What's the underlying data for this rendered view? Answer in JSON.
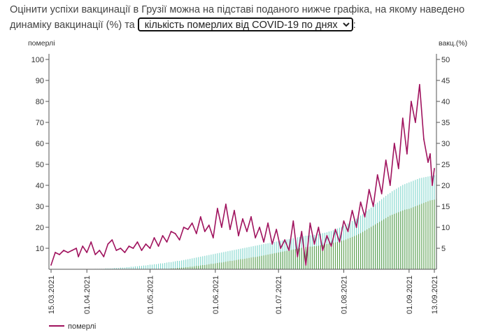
{
  "intro": {
    "text_before": "Оцінити успіхи вакцинації в Грузії можна на підставі поданого нижче графіка, на якому наведено динаміку вакцинації (%) та",
    "text_after": ":"
  },
  "selector": {
    "selected": "кількість померлих від COVID-19 по днях"
  },
  "colors": {
    "deaths_line": "#a0135e",
    "vacc_light": "#7fd6cc",
    "vacc_dark": "#5e9e4c",
    "axis": "#555555",
    "grid": "#eeeeee"
  },
  "chart_data": {
    "type": "line",
    "left_axis": {
      "label": "померлі",
      "ticks": [
        10,
        20,
        30,
        40,
        50,
        60,
        70,
        80,
        90,
        100
      ],
      "range": [
        0,
        100
      ]
    },
    "right_axis": {
      "label": "вакц.(%)",
      "ticks": [
        5,
        10,
        15,
        20,
        25,
        30,
        35,
        40,
        45,
        50
      ],
      "range": [
        0,
        50
      ]
    },
    "x_range": [
      "2021-03-15",
      "2021-09-13"
    ],
    "x_tick_labels": [
      "15.03.2021",
      "01.04.2021",
      "01.05.2021",
      "01.06.2021",
      "01.07.2021",
      "01.08.2021",
      "01.09.2021",
      "13.09.2021"
    ],
    "x_tick_dates": [
      "2021-03-15",
      "2021-04-01",
      "2021-05-01",
      "2021-06-01",
      "2021-07-01",
      "2021-08-01",
      "2021-09-01",
      "2021-09-13"
    ],
    "deaths": {
      "name": "померлі",
      "points": [
        [
          "2021-03-15",
          2
        ],
        [
          "2021-03-17",
          8
        ],
        [
          "2021-03-19",
          7
        ],
        [
          "2021-03-21",
          9
        ],
        [
          "2021-03-23",
          8
        ],
        [
          "2021-03-25",
          9
        ],
        [
          "2021-03-27",
          10
        ],
        [
          "2021-03-28",
          6
        ],
        [
          "2021-03-30",
          11
        ],
        [
          "2021-04-01",
          8
        ],
        [
          "2021-04-03",
          13
        ],
        [
          "2021-04-05",
          7
        ],
        [
          "2021-04-07",
          9
        ],
        [
          "2021-04-09",
          6
        ],
        [
          "2021-04-11",
          12
        ],
        [
          "2021-04-13",
          14
        ],
        [
          "2021-04-15",
          9
        ],
        [
          "2021-04-17",
          10
        ],
        [
          "2021-04-19",
          8
        ],
        [
          "2021-04-21",
          11
        ],
        [
          "2021-04-23",
          10
        ],
        [
          "2021-04-25",
          13
        ],
        [
          "2021-04-27",
          9
        ],
        [
          "2021-04-29",
          12
        ],
        [
          "2021-05-01",
          10
        ],
        [
          "2021-05-03",
          15
        ],
        [
          "2021-05-05",
          11
        ],
        [
          "2021-05-07",
          16
        ],
        [
          "2021-05-09",
          13
        ],
        [
          "2021-05-11",
          18
        ],
        [
          "2021-05-13",
          17
        ],
        [
          "2021-05-15",
          14
        ],
        [
          "2021-05-17",
          20
        ],
        [
          "2021-05-19",
          19
        ],
        [
          "2021-05-21",
          22
        ],
        [
          "2021-05-23",
          17
        ],
        [
          "2021-05-25",
          25
        ],
        [
          "2021-05-27",
          18
        ],
        [
          "2021-05-29",
          21
        ],
        [
          "2021-05-31",
          15
        ],
        [
          "2021-06-02",
          29
        ],
        [
          "2021-06-04",
          20
        ],
        [
          "2021-06-06",
          31
        ],
        [
          "2021-06-08",
          19
        ],
        [
          "2021-06-10",
          28
        ],
        [
          "2021-06-12",
          16
        ],
        [
          "2021-06-14",
          24
        ],
        [
          "2021-06-16",
          18
        ],
        [
          "2021-06-18",
          25
        ],
        [
          "2021-06-20",
          15
        ],
        [
          "2021-06-22",
          20
        ],
        [
          "2021-06-24",
          13
        ],
        [
          "2021-06-26",
          22
        ],
        [
          "2021-06-28",
          12
        ],
        [
          "2021-06-30",
          19
        ],
        [
          "2021-07-02",
          10
        ],
        [
          "2021-07-04",
          14
        ],
        [
          "2021-07-06",
          9
        ],
        [
          "2021-07-08",
          23
        ],
        [
          "2021-07-10",
          6
        ],
        [
          "2021-07-12",
          18
        ],
        [
          "2021-07-14",
          2
        ],
        [
          "2021-07-16",
          22
        ],
        [
          "2021-07-18",
          12
        ],
        [
          "2021-07-20",
          20
        ],
        [
          "2021-07-22",
          9
        ],
        [
          "2021-07-24",
          16
        ],
        [
          "2021-07-26",
          11
        ],
        [
          "2021-07-28",
          19
        ],
        [
          "2021-07-30",
          13
        ],
        [
          "2021-08-01",
          23
        ],
        [
          "2021-08-03",
          18
        ],
        [
          "2021-08-05",
          28
        ],
        [
          "2021-08-07",
          20
        ],
        [
          "2021-08-09",
          32
        ],
        [
          "2021-08-11",
          25
        ],
        [
          "2021-08-13",
          38
        ],
        [
          "2021-08-15",
          30
        ],
        [
          "2021-08-17",
          45
        ],
        [
          "2021-08-19",
          36
        ],
        [
          "2021-08-21",
          52
        ],
        [
          "2021-08-23",
          40
        ],
        [
          "2021-08-25",
          60
        ],
        [
          "2021-08-27",
          48
        ],
        [
          "2021-08-29",
          72
        ],
        [
          "2021-08-31",
          55
        ],
        [
          "2021-09-02",
          80
        ],
        [
          "2021-09-04",
          70
        ],
        [
          "2021-09-06",
          88
        ],
        [
          "2021-09-08",
          62
        ],
        [
          "2021-09-10",
          51
        ],
        [
          "2021-09-11",
          55
        ],
        [
          "2021-09-12",
          40
        ],
        [
          "2021-09-13",
          48
        ]
      ]
    },
    "vaccination": {
      "start_date": "2021-03-15",
      "dose1": [
        0.0,
        0.0,
        0.0,
        0.0,
        0.0,
        0.0,
        0.0,
        0.0,
        0.0,
        0.0,
        0.0,
        0.0,
        0.0,
        0.0,
        0.0,
        0.0,
        0.0,
        0.0,
        0.0,
        0.0,
        0.0,
        0.1,
        0.1,
        0.1,
        0.1,
        0.1,
        0.2,
        0.2,
        0.2,
        0.2,
        0.3,
        0.3,
        0.3,
        0.4,
        0.4,
        0.4,
        0.5,
        0.5,
        0.6,
        0.6,
        0.7,
        0.7,
        0.8,
        0.8,
        0.9,
        0.9,
        1.0,
        1.1,
        1.1,
        1.2,
        1.2,
        1.3,
        1.4,
        1.4,
        1.5,
        1.6,
        1.7,
        1.7,
        1.8,
        1.9,
        2.0,
        2.0,
        2.1,
        2.2,
        2.3,
        2.4,
        2.5,
        2.6,
        2.7,
        2.8,
        2.9,
        3.0,
        3.1,
        3.2,
        3.3,
        3.4,
        3.5,
        3.6,
        3.7,
        3.8,
        3.9,
        4.0,
        4.1,
        4.2,
        4.3,
        4.4,
        4.5,
        4.6,
        4.7,
        4.8,
        4.9,
        5.0,
        5.1,
        5.2,
        5.3,
        5.4,
        5.5,
        5.6,
        5.7,
        5.8,
        5.9,
        6.0,
        6.1,
        6.2,
        6.3,
        6.4,
        6.5,
        6.6,
        6.7,
        6.8,
        6.9,
        7.0,
        7.1,
        7.2,
        7.3,
        7.4,
        7.5,
        7.6,
        7.7,
        7.8,
        7.9,
        8.0,
        8.0,
        8.1,
        8.1,
        8.2,
        8.3,
        8.4,
        8.5,
        8.6,
        8.7,
        8.8,
        9.0,
        9.1,
        9.3,
        9.5,
        9.7,
        9.9,
        10.1,
        10.4,
        10.6,
        10.9,
        11.2,
        11.5,
        11.8,
        12.1,
        12.4,
        12.8,
        13.1,
        13.5,
        13.9,
        14.3,
        14.7,
        15.1,
        15.5,
        15.9,
        16.3,
        16.7,
        17.1,
        17.5,
        17.9,
        18.2,
        18.6,
        18.9,
        19.2,
        19.5,
        19.8,
        20.1,
        20.3,
        20.5,
        20.7,
        20.9,
        21.1,
        21.3,
        21.5,
        21.7,
        21.8,
        21.9,
        22.0,
        22.1,
        22.2,
        22.3,
        22.4,
        22.5
      ],
      "dose2": [
        0.0,
        0.0,
        0.0,
        0.0,
        0.0,
        0.0,
        0.0,
        0.0,
        0.0,
        0.0,
        0.0,
        0.0,
        0.0,
        0.0,
        0.0,
        0.0,
        0.0,
        0.0,
        0.0,
        0.0,
        0.0,
        0.0,
        0.0,
        0.0,
        0.0,
        0.0,
        0.0,
        0.0,
        0.0,
        0.0,
        0.0,
        0.0,
        0.0,
        0.0,
        0.0,
        0.0,
        0.0,
        0.0,
        0.0,
        0.0,
        0.0,
        0.0,
        0.0,
        0.0,
        0.0,
        0.0,
        0.0,
        0.0,
        0.0,
        0.0,
        0.0,
        0.0,
        0.0,
        0.0,
        0.1,
        0.1,
        0.1,
        0.2,
        0.2,
        0.2,
        0.3,
        0.3,
        0.4,
        0.4,
        0.5,
        0.5,
        0.6,
        0.6,
        0.7,
        0.8,
        0.8,
        0.9,
        1.0,
        1.0,
        1.1,
        1.2,
        1.3,
        1.3,
        1.4,
        1.5,
        1.6,
        1.6,
        1.7,
        1.8,
        1.9,
        2.0,
        2.0,
        2.1,
        2.2,
        2.3,
        2.4,
        2.4,
        2.5,
        2.6,
        2.7,
        2.8,
        2.9,
        2.9,
        3.0,
        3.1,
        3.2,
        3.3,
        3.4,
        3.5,
        3.6,
        3.7,
        3.8,
        3.9,
        4.0,
        4.1,
        4.2,
        4.3,
        4.4,
        4.5,
        4.6,
        4.7,
        4.8,
        4.9,
        5.0,
        5.1,
        5.2,
        5.3,
        5.3,
        5.4,
        5.4,
        5.5,
        5.5,
        5.6,
        5.7,
        5.8,
        5.9,
        6.0,
        6.1,
        6.2,
        6.3,
        6.4,
        6.5,
        6.6,
        6.8,
        6.9,
        7.1,
        7.3,
        7.5,
        7.7,
        7.9,
        8.1,
        8.4,
        8.6,
        8.9,
        9.2,
        9.5,
        9.8,
        10.1,
        10.4,
        10.7,
        11.0,
        11.3,
        11.6,
        11.9,
        12.2,
        12.5,
        12.8,
        13.0,
        13.2,
        13.4,
        13.6,
        13.8,
        14.0,
        14.2,
        14.3,
        14.4,
        14.6,
        14.8,
        15.0,
        15.2,
        15.4,
        15.6,
        15.8,
        16.0,
        16.2,
        16.4,
        16.5,
        16.6,
        16.8
      ]
    },
    "legend": [
      {
        "label": "померлі",
        "position": "bottom-left"
      }
    ]
  }
}
